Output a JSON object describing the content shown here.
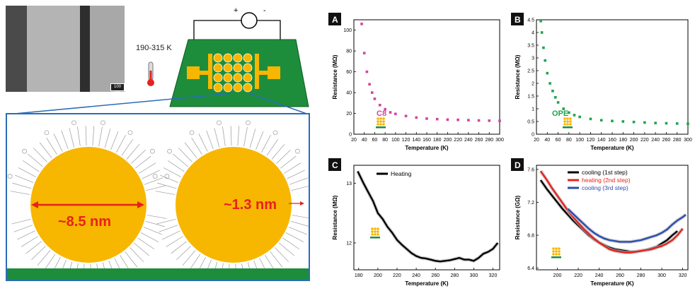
{
  "figure": {
    "sem_scale": "100 nm",
    "temperature_range": "190-315 K",
    "circuit_symbols": {
      "plus": "+",
      "minus": "-"
    },
    "diameter_label": "~8.5 nm",
    "ligand_label": "~1.3 nm",
    "colors": {
      "gold": "#f7b600",
      "green": "#1d8d3c",
      "blue": "#2a6db8",
      "red": "#e8211e",
      "c8": "#d4449c",
      "ope": "#1fa54a"
    }
  },
  "chart_data": [
    {
      "panel": "A",
      "type": "scatter",
      "title": "",
      "series_label": "C8",
      "xlabel": "Temperature (K)",
      "ylabel": "Resistance (MΩ)",
      "xlim": [
        20,
        300
      ],
      "ylim": [
        0,
        110
      ],
      "xticks": [
        20,
        40,
        60,
        80,
        100,
        120,
        140,
        160,
        180,
        200,
        220,
        240,
        260,
        280,
        300
      ],
      "yticks": [
        0,
        20,
        40,
        60,
        80,
        100
      ],
      "color": "#d4449c",
      "x": [
        35,
        40,
        45,
        50,
        55,
        60,
        70,
        80,
        90,
        100,
        120,
        140,
        160,
        180,
        200,
        220,
        240,
        260,
        280,
        300
      ],
      "y": [
        106,
        78,
        60,
        48,
        40,
        34,
        28,
        24,
        21,
        19.5,
        17.5,
        16,
        15,
        14.5,
        14,
        13.8,
        13.5,
        13.2,
        13,
        12.8
      ]
    },
    {
      "panel": "B",
      "type": "scatter",
      "title": "",
      "series_label": "OPE",
      "xlabel": "Temperature (K)",
      "ylabel": "Resistance (MΩ)",
      "xlim": [
        20,
        300
      ],
      "ylim": [
        0,
        4.5
      ],
      "xticks": [
        20,
        40,
        60,
        80,
        100,
        120,
        140,
        160,
        180,
        200,
        220,
        240,
        260,
        280,
        300
      ],
      "yticks": [
        0,
        0.5,
        1,
        1.5,
        2,
        2.5,
        3,
        3.5,
        4,
        4.5
      ],
      "color": "#1fa54a",
      "x": [
        28,
        30,
        33,
        36,
        40,
        45,
        50,
        55,
        60,
        70,
        80,
        90,
        100,
        120,
        140,
        160,
        180,
        200,
        220,
        240,
        260,
        280,
        300
      ],
      "y": [
        4.45,
        4.0,
        3.4,
        2.9,
        2.4,
        2.0,
        1.7,
        1.45,
        1.25,
        1.0,
        0.85,
        0.75,
        0.68,
        0.6,
        0.55,
        0.52,
        0.5,
        0.48,
        0.46,
        0.44,
        0.43,
        0.42,
        0.41
      ]
    },
    {
      "panel": "C",
      "type": "line",
      "title": "",
      "xlabel": "Temperature (K)",
      "ylabel": "Resistance (MΩ)",
      "xlim": [
        175,
        327
      ],
      "ylim": [
        11.55,
        13.3
      ],
      "xticks": [
        180,
        200,
        220,
        240,
        260,
        280,
        300,
        320
      ],
      "yticks": [
        12,
        13
      ],
      "legend": [
        "Heating"
      ],
      "legend_position": "top-left",
      "series": [
        {
          "name": "Heating",
          "color": "#000000",
          "x": [
            179,
            185,
            190,
            195,
            200,
            205,
            210,
            215,
            220,
            225,
            230,
            235,
            240,
            245,
            250,
            255,
            260,
            265,
            270,
            275,
            280,
            285,
            290,
            295,
            300,
            305,
            310,
            315,
            320,
            325
          ],
          "y": [
            13.2,
            13.0,
            12.85,
            12.7,
            12.5,
            12.4,
            12.27,
            12.17,
            12.05,
            11.97,
            11.9,
            11.83,
            11.78,
            11.75,
            11.74,
            11.72,
            11.7,
            11.69,
            11.7,
            11.71,
            11.73,
            11.75,
            11.72,
            11.72,
            11.7,
            11.75,
            11.82,
            11.85,
            11.9,
            12.0
          ]
        }
      ]
    },
    {
      "panel": "D",
      "type": "line",
      "title": "",
      "xlabel": "Temperature (K)",
      "ylabel": "Resistance (GΩ)",
      "xlim": [
        180,
        325
      ],
      "ylim": [
        6.38,
        7.65
      ],
      "xticks": [
        200,
        220,
        240,
        260,
        280,
        300,
        320
      ],
      "yticks": [
        6.4,
        6.8,
        7.2,
        7.6
      ],
      "legend": [
        "cooling (1st step)",
        "heating (2nd step)",
        "cooling (3rd step)"
      ],
      "legend_position": "top-right",
      "series": [
        {
          "name": "cooling (1st step)",
          "color": "#000000",
          "x": [
            184,
            190,
            195,
            200,
            205,
            210,
            215,
            220,
            225,
            230,
            235,
            240,
            245,
            250,
            255,
            260,
            265,
            270,
            275,
            280,
            285,
            290,
            295,
            300,
            305,
            310,
            315
          ],
          "y": [
            7.47,
            7.36,
            7.28,
            7.2,
            7.12,
            7.05,
            6.98,
            6.92,
            6.86,
            6.8,
            6.75,
            6.71,
            6.68,
            6.65,
            6.63,
            6.62,
            6.61,
            6.6,
            6.6,
            6.61,
            6.62,
            6.64,
            6.66,
            6.7,
            6.74,
            6.8,
            6.85
          ]
        },
        {
          "name": "heating (2nd step)",
          "color": "#e8211e",
          "x": [
            184,
            190,
            195,
            200,
            205,
            210,
            215,
            220,
            225,
            230,
            235,
            240,
            245,
            250,
            255,
            260,
            265,
            270,
            275,
            280,
            285,
            290,
            295,
            300,
            305,
            310,
            315,
            320
          ],
          "y": [
            7.58,
            7.47,
            7.37,
            7.28,
            7.19,
            7.1,
            7.02,
            6.95,
            6.88,
            6.82,
            6.76,
            6.71,
            6.67,
            6.63,
            6.61,
            6.6,
            6.59,
            6.59,
            6.6,
            6.61,
            6.62,
            6.63,
            6.65,
            6.67,
            6.7,
            6.74,
            6.8,
            6.88
          ]
        },
        {
          "name": "cooling (3rd step)",
          "color": "#2a4db0",
          "x": [
            210,
            215,
            220,
            225,
            230,
            235,
            240,
            245,
            250,
            255,
            260,
            265,
            270,
            275,
            280,
            285,
            290,
            295,
            300,
            305,
            310,
            315,
            320,
            323
          ],
          "y": [
            7.12,
            7.06,
            7.0,
            6.94,
            6.88,
            6.83,
            6.79,
            6.76,
            6.74,
            6.73,
            6.72,
            6.72,
            6.72,
            6.73,
            6.74,
            6.76,
            6.78,
            6.8,
            6.83,
            6.87,
            6.93,
            6.98,
            7.02,
            7.05
          ]
        }
      ]
    }
  ]
}
